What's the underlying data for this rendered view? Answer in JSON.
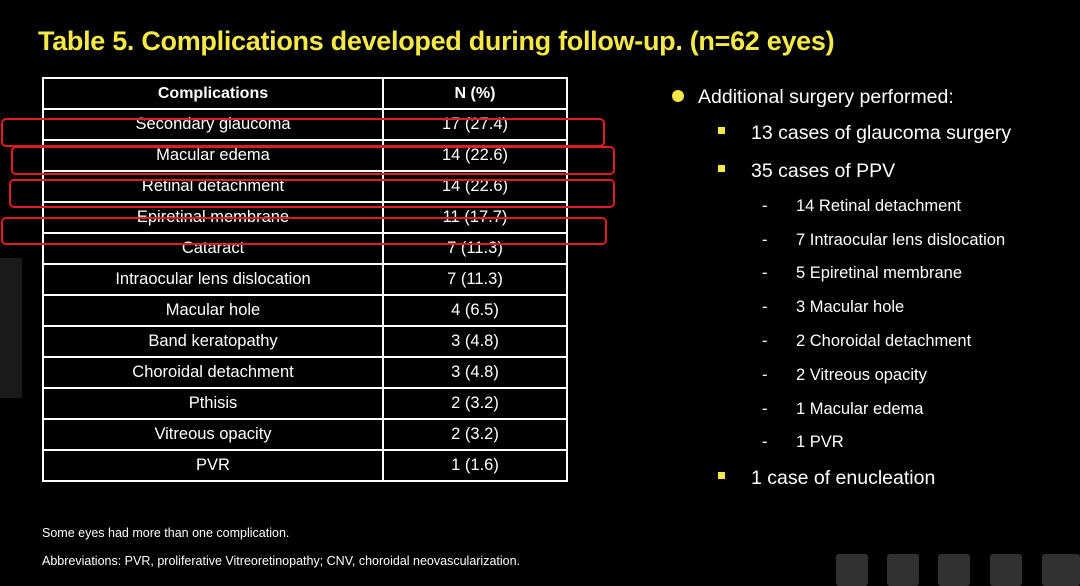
{
  "title": "Table 5. Complications developed during follow-up. (n=62 eyes)",
  "table": {
    "headers": [
      "Complications",
      "N (%)"
    ],
    "rows": [
      [
        "Secondary glaucoma",
        "17 (27.4)"
      ],
      [
        "Macular edema",
        "14 (22.6)"
      ],
      [
        "Retinal detachment",
        "14 (22.6)"
      ],
      [
        "Epiretinal membrane",
        "11 (17.7)"
      ],
      [
        "Cataract",
        "7 (11.3)"
      ],
      [
        "Intraocular lens dislocation",
        "7 (11.3)"
      ],
      [
        "Macular hole",
        "4 (6.5)"
      ],
      [
        "Band keratopathy",
        "3 (4.8)"
      ],
      [
        "Choroidal detachment",
        "3 (4.8)"
      ],
      [
        "Pthisis",
        "2 (3.2)"
      ],
      [
        "Vitreous opacity",
        "2 (3.2)"
      ],
      [
        "PVR",
        "1 (1.6)"
      ]
    ]
  },
  "footnotes": [
    "Some eyes had more than one complication.",
    "Abbreviations: PVR, proliferative Vitreoretinopathy; CNV, choroidal neovascularization."
  ],
  "bullets": {
    "main": "Additional surgery performed:",
    "glaucoma": "13 cases of glaucoma surgery",
    "ppv": "35 cases of PPV",
    "ppv_items": [
      "14 Retinal detachment",
      "7 Intraocular lens dislocation",
      "5 Epiretinal membrane",
      "3 Macular hole",
      "2 Choroidal detachment",
      "2 Vitreous opacity",
      "1 Macular edema",
      "1 PVR"
    ],
    "enucleation": "1 case of enucleation",
    "dash": "-"
  },
  "colors": {
    "title": "#f5e94a",
    "highlight": "#e01b24",
    "background": "#000000"
  }
}
